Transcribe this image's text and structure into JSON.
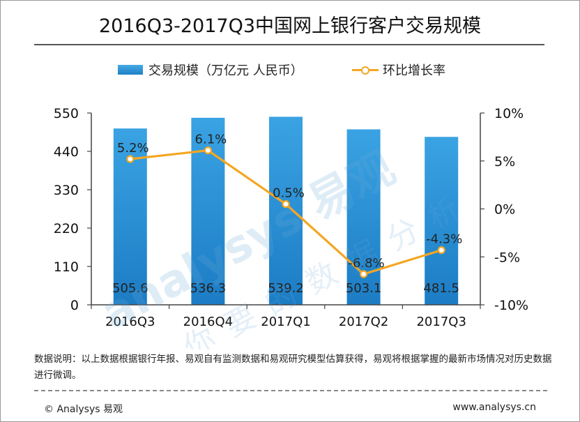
{
  "title": "2016Q3-2017Q3中国网上银行客户交易规模",
  "legend": {
    "bar_label": "交易规模（万亿元 人民币）",
    "line_label": "环比增长率"
  },
  "chart_data": {
    "type": "bar",
    "categories": [
      "2016Q3",
      "2016Q4",
      "2017Q1",
      "2017Q2",
      "2017Q3"
    ],
    "series": [
      {
        "name": "交易规模（万亿元 人民币）",
        "type": "bar",
        "axis": "left",
        "values": [
          505.6,
          536.3,
          539.2,
          503.1,
          481.5
        ],
        "labels": [
          "505.6",
          "536.3",
          "539.2",
          "503.1",
          "481.5"
        ],
        "color": "#2b8fd6"
      },
      {
        "name": "环比增长率",
        "type": "line",
        "axis": "right",
        "values": [
          5.2,
          6.1,
          0.5,
          -6.8,
          -4.3
        ],
        "labels": [
          "5.2%",
          "6.1%",
          "0.5%",
          "-6.8%",
          "-4.3%"
        ],
        "color": "#f5a623"
      }
    ],
    "left_axis": {
      "ylim": [
        0,
        550
      ],
      "ticks": [
        "0",
        "110",
        "220",
        "330",
        "440",
        "550"
      ]
    },
    "right_axis": {
      "ylim": [
        -10,
        10
      ],
      "ticks": [
        "-10%",
        "-5%",
        "0%",
        "5%",
        "10%"
      ]
    },
    "grid": false,
    "legend_position": "top"
  },
  "watermark": {
    "brand": "analysys 易观",
    "slogan": "你要的数据分析"
  },
  "footer": {
    "note": "数据说明：以上数据根据银行年报、易观自有监测数据和易观研究模型估算获得，易观将根据掌握的最新市场情况对历史数据进行微调。",
    "copyright": "© Analysys 易观",
    "website": "www.analysys.cn"
  }
}
